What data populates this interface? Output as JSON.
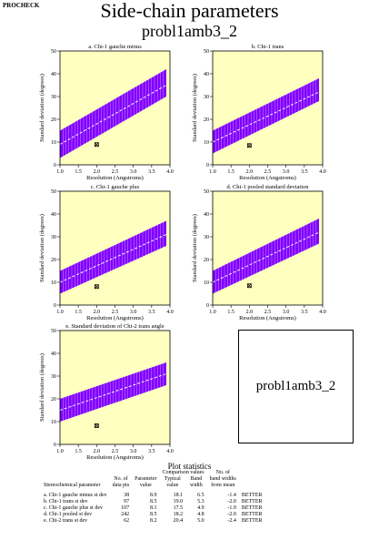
{
  "header": {
    "program": "PROCHECK",
    "title": "Side-chain parameters",
    "subtitle": "probl1amb3_2"
  },
  "id_box_label": "probl1amb3_2",
  "colors": {
    "plot_bg": "#ffffc0",
    "band": "#8000ff",
    "band_stripe": "#ffffff",
    "line": "#ffffff",
    "marker": "#000000"
  },
  "chart_data": [
    {
      "type": "area",
      "title": "a. Chi-1 gauche minus",
      "xlabel": "Resolution (Angstroms)",
      "ylabel": "Standard deviation (degrees)",
      "xlim": [
        1.0,
        4.0
      ],
      "ylim": [
        0,
        50
      ],
      "xticks": [
        "1.0",
        "1.5",
        "2.0",
        "2.5",
        "3.0",
        "3.5",
        "4.0"
      ],
      "yticks": [
        "0",
        "10",
        "20",
        "30",
        "40",
        "50"
      ],
      "band": {
        "x": [
          1.0,
          3.9
        ],
        "lower": [
          3,
          30
        ],
        "mid": [
          9,
          35
        ],
        "upper": [
          15,
          42
        ]
      },
      "point": {
        "x": 2.0,
        "y": 8.9
      }
    },
    {
      "type": "area",
      "title": "b. Chi-1 trans",
      "xlabel": "Resolution (Angstroms)",
      "ylabel": "Standard deviation (degrees)",
      "xlim": [
        1.0,
        4.0
      ],
      "ylim": [
        0,
        50
      ],
      "xticks": [
        "1.0",
        "1.5",
        "2.0",
        "2.5",
        "3.0",
        "3.5",
        "4.0"
      ],
      "yticks": [
        "0",
        "10",
        "20",
        "30",
        "40",
        "50"
      ],
      "band": {
        "x": [
          1.0,
          3.9
        ],
        "lower": [
          5,
          28
        ],
        "mid": [
          10,
          32
        ],
        "upper": [
          15,
          38
        ]
      },
      "point": {
        "x": 2.0,
        "y": 8.5
      }
    },
    {
      "type": "area",
      "title": "c. Chi-1 gauche plus",
      "xlabel": "Resolution (Angstroms)",
      "ylabel": "Standard deviation (degrees)",
      "xlim": [
        1.0,
        4.0
      ],
      "ylim": [
        0,
        50
      ],
      "xticks": [
        "1.0",
        "1.5",
        "2.0",
        "2.5",
        "3.0",
        "3.5",
        "4.0"
      ],
      "yticks": [
        "0",
        "10",
        "20",
        "30",
        "40",
        "50"
      ],
      "band": {
        "x": [
          1.0,
          3.9
        ],
        "lower": [
          5,
          26
        ],
        "mid": [
          10,
          31
        ],
        "upper": [
          15,
          37
        ]
      },
      "point": {
        "x": 2.0,
        "y": 8.1
      }
    },
    {
      "type": "area",
      "title": "d. Chi-1 pooled standard deviation",
      "xlabel": "Resolution (Angstroms)",
      "ylabel": "Standard deviation (degrees)",
      "xlim": [
        1.0,
        4.0
      ],
      "ylim": [
        0,
        50
      ],
      "xticks": [
        "1.0",
        "1.5",
        "2.0",
        "2.5",
        "3.0",
        "3.5",
        "4.0"
      ],
      "yticks": [
        "0",
        "10",
        "20",
        "30",
        "40",
        "50"
      ],
      "band": {
        "x": [
          1.0,
          3.9
        ],
        "lower": [
          5,
          27
        ],
        "mid": [
          10,
          32
        ],
        "upper": [
          15,
          38
        ]
      },
      "point": {
        "x": 2.0,
        "y": 8.5
      }
    },
    {
      "type": "area",
      "title": "e. Standard deviation of Chi-2 trans angle",
      "xlabel": "Resolution (Angstroms)",
      "ylabel": "Standard deviation (degrees)",
      "xlim": [
        1.0,
        4.0
      ],
      "ylim": [
        0,
        50
      ],
      "xticks": [
        "1.0",
        "1.5",
        "2.0",
        "2.5",
        "3.0",
        "3.5",
        "4.0"
      ],
      "yticks": [
        "0",
        "10",
        "20",
        "30",
        "40",
        "50"
      ],
      "band": {
        "x": [
          1.0,
          3.9
        ],
        "lower": [
          10,
          26
        ],
        "mid": [
          15,
          31
        ],
        "upper": [
          20,
          36
        ]
      },
      "point": {
        "x": 2.0,
        "y": 8.2
      }
    }
  ],
  "stats": {
    "title": "Plot statistics",
    "group_header": "Comparison values",
    "col_param": "Stereochemical parameter",
    "col_nopts_1": "No. of",
    "col_nopts_2": "data pts",
    "col_value_1": "Parameter",
    "col_value_2": "value",
    "col_typical": "Typical",
    "col_typical_2": "value",
    "col_band": "Band",
    "col_band_2": "width",
    "col_nbw_1": "No. of",
    "col_nbw_2": "band widths",
    "col_nbw_3": "from mean",
    "rows": [
      {
        "param": "a. Chi-1 gauche minus st dev",
        "n": "38",
        "value": "8.9",
        "typical": "18.1",
        "band": "6.5",
        "nbw": "-1.4",
        "verdict": "BETTER"
      },
      {
        "param": "b. Chi-1 trans st dev",
        "n": "97",
        "value": "8.5",
        "typical": "19.0",
        "band": "5.3",
        "nbw": "-2.0",
        "verdict": "BETTER"
      },
      {
        "param": "c. Chi-1 gauche plus st dev",
        "n": "107",
        "value": "8.1",
        "typical": "17.5",
        "band": "4.9",
        "nbw": "-1.9",
        "verdict": "BETTER"
      },
      {
        "param": "d. Chi-1 pooled st dev",
        "n": "242",
        "value": "8.5",
        "typical": "18.2",
        "band": "4.8",
        "nbw": "-2.0",
        "verdict": "BETTER"
      },
      {
        "param": "e. Chi-2 trans st dev",
        "n": "62",
        "value": "8.2",
        "typical": "20.4",
        "band": "5.0",
        "nbw": "-2.4",
        "verdict": "BETTER"
      }
    ]
  }
}
